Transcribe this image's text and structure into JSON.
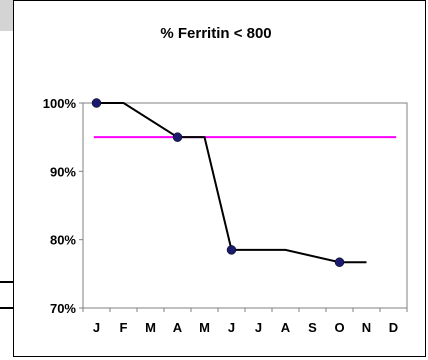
{
  "chart_data": {
    "type": "line",
    "title": "% Ferritin < 800",
    "xlabel": "",
    "ylabel": "",
    "categories": [
      "J",
      "F",
      "M",
      "A",
      "M",
      "J",
      "J",
      "A",
      "S",
      "O",
      "N",
      "D"
    ],
    "ylim": [
      0.7,
      1.0
    ],
    "yticks": [
      "100%",
      "90%",
      "80%",
      "70%"
    ],
    "grid": false,
    "legend": "none",
    "series": [
      {
        "values": [
          1.0,
          1.0,
          null,
          0.95,
          0.95,
          null,
          0.785,
          0.785,
          null,
          0.767,
          0.767,
          null
        ],
        "points": [
          {
            "month": "J",
            "value": 1.0,
            "marker": "circle"
          },
          {
            "month": "F",
            "value": 1.0,
            "marker": "none"
          },
          {
            "month": "A",
            "value": 0.95,
            "marker": "circle"
          },
          {
            "month": "M",
            "value": 0.95,
            "marker": "none"
          },
          {
            "month": "J",
            "value": 0.785,
            "marker": "circle"
          },
          {
            "month": "A",
            "value": 0.785,
            "marker": "none"
          },
          {
            "month": "O",
            "value": 0.767,
            "marker": "circle"
          },
          {
            "month": "N",
            "value": 0.767,
            "marker": "none"
          }
        ],
        "color": "#000000",
        "marker_color": "#1a1a6e"
      },
      {
        "values": [
          0.95,
          0.95,
          0.95,
          0.95,
          0.95,
          0.95,
          0.95,
          0.95,
          0.95,
          0.95,
          0.95,
          0.95
        ],
        "color": "#ff00ff",
        "role": "target line"
      }
    ],
    "plot_background": "#ffffff",
    "plot_border_color": "#808080"
  }
}
